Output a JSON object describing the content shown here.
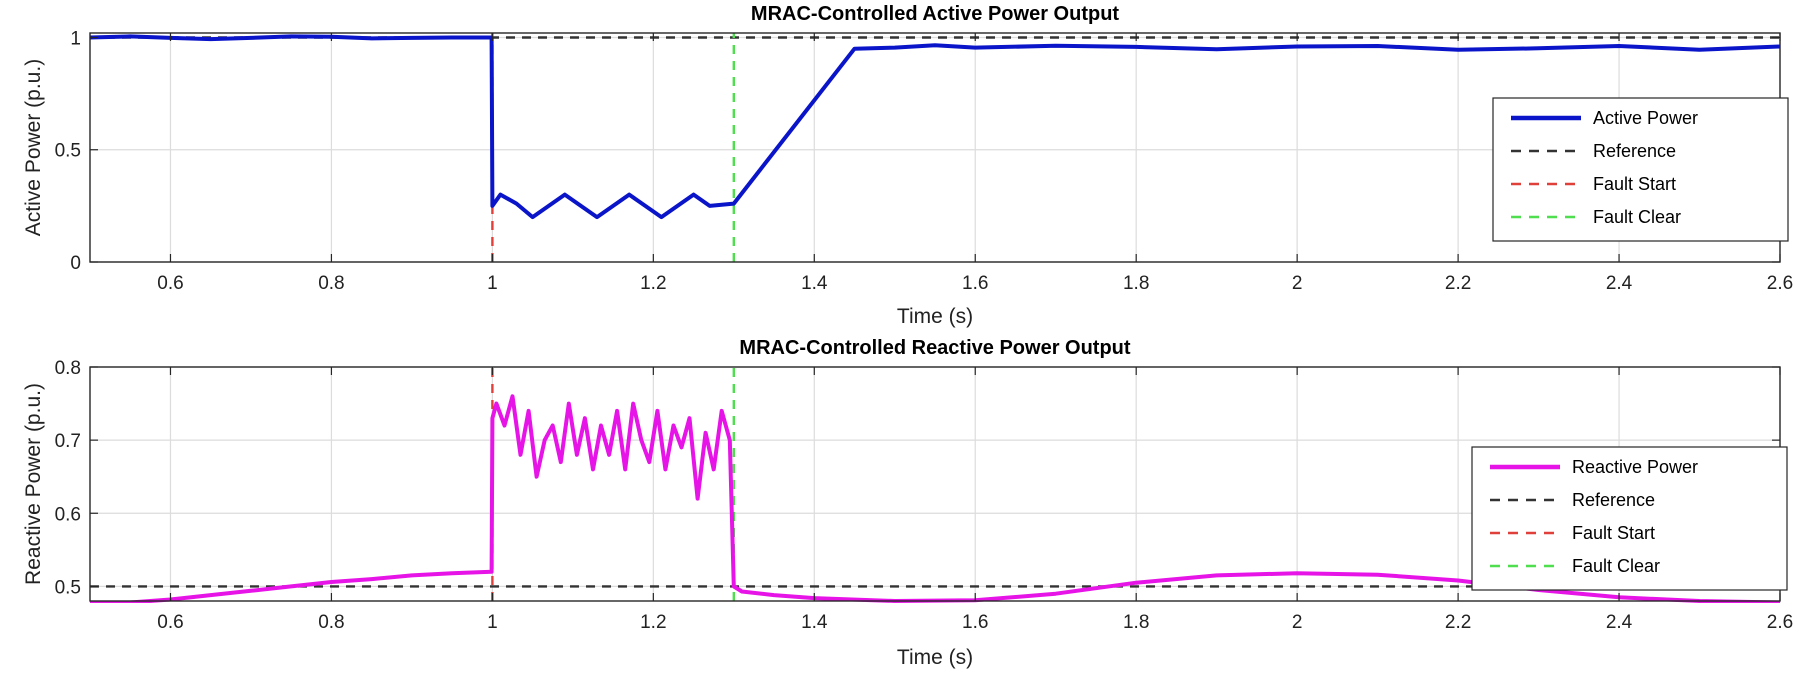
{
  "chart_data": [
    {
      "type": "line",
      "title": "MRAC-Controlled Active Power Output",
      "xlabel": "Time (s)",
      "ylabel": "Active Power (p.u.)",
      "xlim": [
        0.5,
        2.6
      ],
      "ylim": [
        0,
        1.02
      ],
      "xticks": [
        0.6,
        0.8,
        1,
        1.2,
        1.4,
        1.6,
        1.8,
        2,
        2.2,
        2.4,
        2.6
      ],
      "xtick_labels": [
        "0.6",
        "0.8",
        "1",
        "1.2",
        "1.4",
        "1.6",
        "1.8",
        "2",
        "2.2",
        "2.4",
        "2.6"
      ],
      "yticks": [
        0,
        0.5,
        1
      ],
      "ytick_labels": [
        "0",
        "0.5",
        "1"
      ],
      "grid": true,
      "legend": "right",
      "series": [
        {
          "name": "Active Power",
          "color": "#0a14c8",
          "style": "solid",
          "x": [
            0.5,
            0.55,
            0.6,
            0.65,
            0.7,
            0.75,
            0.8,
            0.85,
            0.9,
            0.95,
            0.999,
            1.0,
            1.01,
            1.03,
            1.05,
            1.07,
            1.09,
            1.11,
            1.13,
            1.15,
            1.17,
            1.19,
            1.21,
            1.23,
            1.25,
            1.27,
            1.3,
            1.45,
            1.5,
            1.55,
            1.6,
            1.7,
            1.8,
            1.9,
            2.0,
            2.1,
            2.2,
            2.3,
            2.4,
            2.5,
            2.6
          ],
          "y": [
            1.0,
            1.005,
            0.998,
            0.993,
            0.998,
            1.005,
            1.003,
            0.996,
            0.998,
            1.0,
            1.0,
            0.25,
            0.3,
            0.26,
            0.2,
            0.25,
            0.3,
            0.25,
            0.2,
            0.25,
            0.3,
            0.25,
            0.2,
            0.25,
            0.3,
            0.25,
            0.26,
            0.95,
            0.955,
            0.965,
            0.955,
            0.963,
            0.958,
            0.948,
            0.96,
            0.962,
            0.945,
            0.952,
            0.962,
            0.945,
            0.96
          ]
        },
        {
          "name": "Reference",
          "color": "#333333",
          "style": "dashed",
          "x": [
            0.5,
            2.6
          ],
          "y": [
            1.0,
            1.0
          ]
        },
        {
          "name": "Fault Start",
          "color": "#e0403a",
          "style": "dashed",
          "x": [
            1.0,
            1.0
          ],
          "y": [
            0,
            1.02
          ]
        },
        {
          "name": "Fault Clear",
          "color": "#4ede4e",
          "style": "dashed",
          "x": [
            1.3,
            1.3
          ],
          "y": [
            0,
            1.02
          ]
        }
      ]
    },
    {
      "type": "line",
      "title": "MRAC-Controlled Reactive Power Output",
      "xlabel": "Time (s)",
      "ylabel": "Reactive Power (p.u.)",
      "xlim": [
        0.5,
        2.6
      ],
      "ylim": [
        0.48,
        0.8
      ],
      "xticks": [
        0.6,
        0.8,
        1,
        1.2,
        1.4,
        1.6,
        1.8,
        2,
        2.2,
        2.4,
        2.6
      ],
      "xtick_labels": [
        "0.6",
        "0.8",
        "1",
        "1.2",
        "1.4",
        "1.6",
        "1.8",
        "2",
        "2.2",
        "2.4",
        "2.6"
      ],
      "yticks": [
        0.5,
        0.6,
        0.7,
        0.8
      ],
      "ytick_labels": [
        "0.5",
        "0.6",
        "0.7",
        "0.8"
      ],
      "grid": true,
      "legend": "right",
      "series": [
        {
          "name": "Reactive Power",
          "color": "#e614e6",
          "style": "solid",
          "x": [
            0.5,
            0.55,
            0.6,
            0.65,
            0.7,
            0.75,
            0.8,
            0.85,
            0.9,
            0.95,
            0.999,
            1.0,
            1.005,
            1.015,
            1.025,
            1.035,
            1.045,
            1.055,
            1.065,
            1.075,
            1.085,
            1.095,
            1.105,
            1.115,
            1.125,
            1.135,
            1.145,
            1.155,
            1.165,
            1.175,
            1.185,
            1.195,
            1.205,
            1.215,
            1.225,
            1.235,
            1.245,
            1.255,
            1.265,
            1.275,
            1.285,
            1.295,
            1.3,
            1.31,
            1.35,
            1.4,
            1.5,
            1.6,
            1.7,
            1.8,
            1.9,
            2.0,
            2.1,
            2.2,
            2.3,
            2.4,
            2.5,
            2.6
          ],
          "y": [
            0.478,
            0.478,
            0.482,
            0.488,
            0.494,
            0.5,
            0.506,
            0.51,
            0.515,
            0.518,
            0.52,
            0.73,
            0.75,
            0.72,
            0.76,
            0.68,
            0.74,
            0.65,
            0.7,
            0.72,
            0.67,
            0.75,
            0.68,
            0.73,
            0.66,
            0.72,
            0.68,
            0.74,
            0.66,
            0.75,
            0.7,
            0.67,
            0.74,
            0.66,
            0.72,
            0.69,
            0.73,
            0.62,
            0.71,
            0.66,
            0.74,
            0.7,
            0.5,
            0.493,
            0.488,
            0.484,
            0.48,
            0.481,
            0.49,
            0.505,
            0.515,
            0.518,
            0.516,
            0.508,
            0.495,
            0.485,
            0.48,
            0.478
          ]
        },
        {
          "name": "Reference",
          "color": "#333333",
          "style": "dashed",
          "x": [
            0.5,
            2.6
          ],
          "y": [
            0.5,
            0.5
          ]
        },
        {
          "name": "Fault Start",
          "color": "#e0403a",
          "style": "dashed",
          "x": [
            1.0,
            1.0
          ],
          "y": [
            0.48,
            0.8
          ]
        },
        {
          "name": "Fault Clear",
          "color": "#4ede4e",
          "style": "dashed",
          "x": [
            1.3,
            1.3
          ],
          "y": [
            0.48,
            0.8
          ]
        }
      ]
    }
  ]
}
